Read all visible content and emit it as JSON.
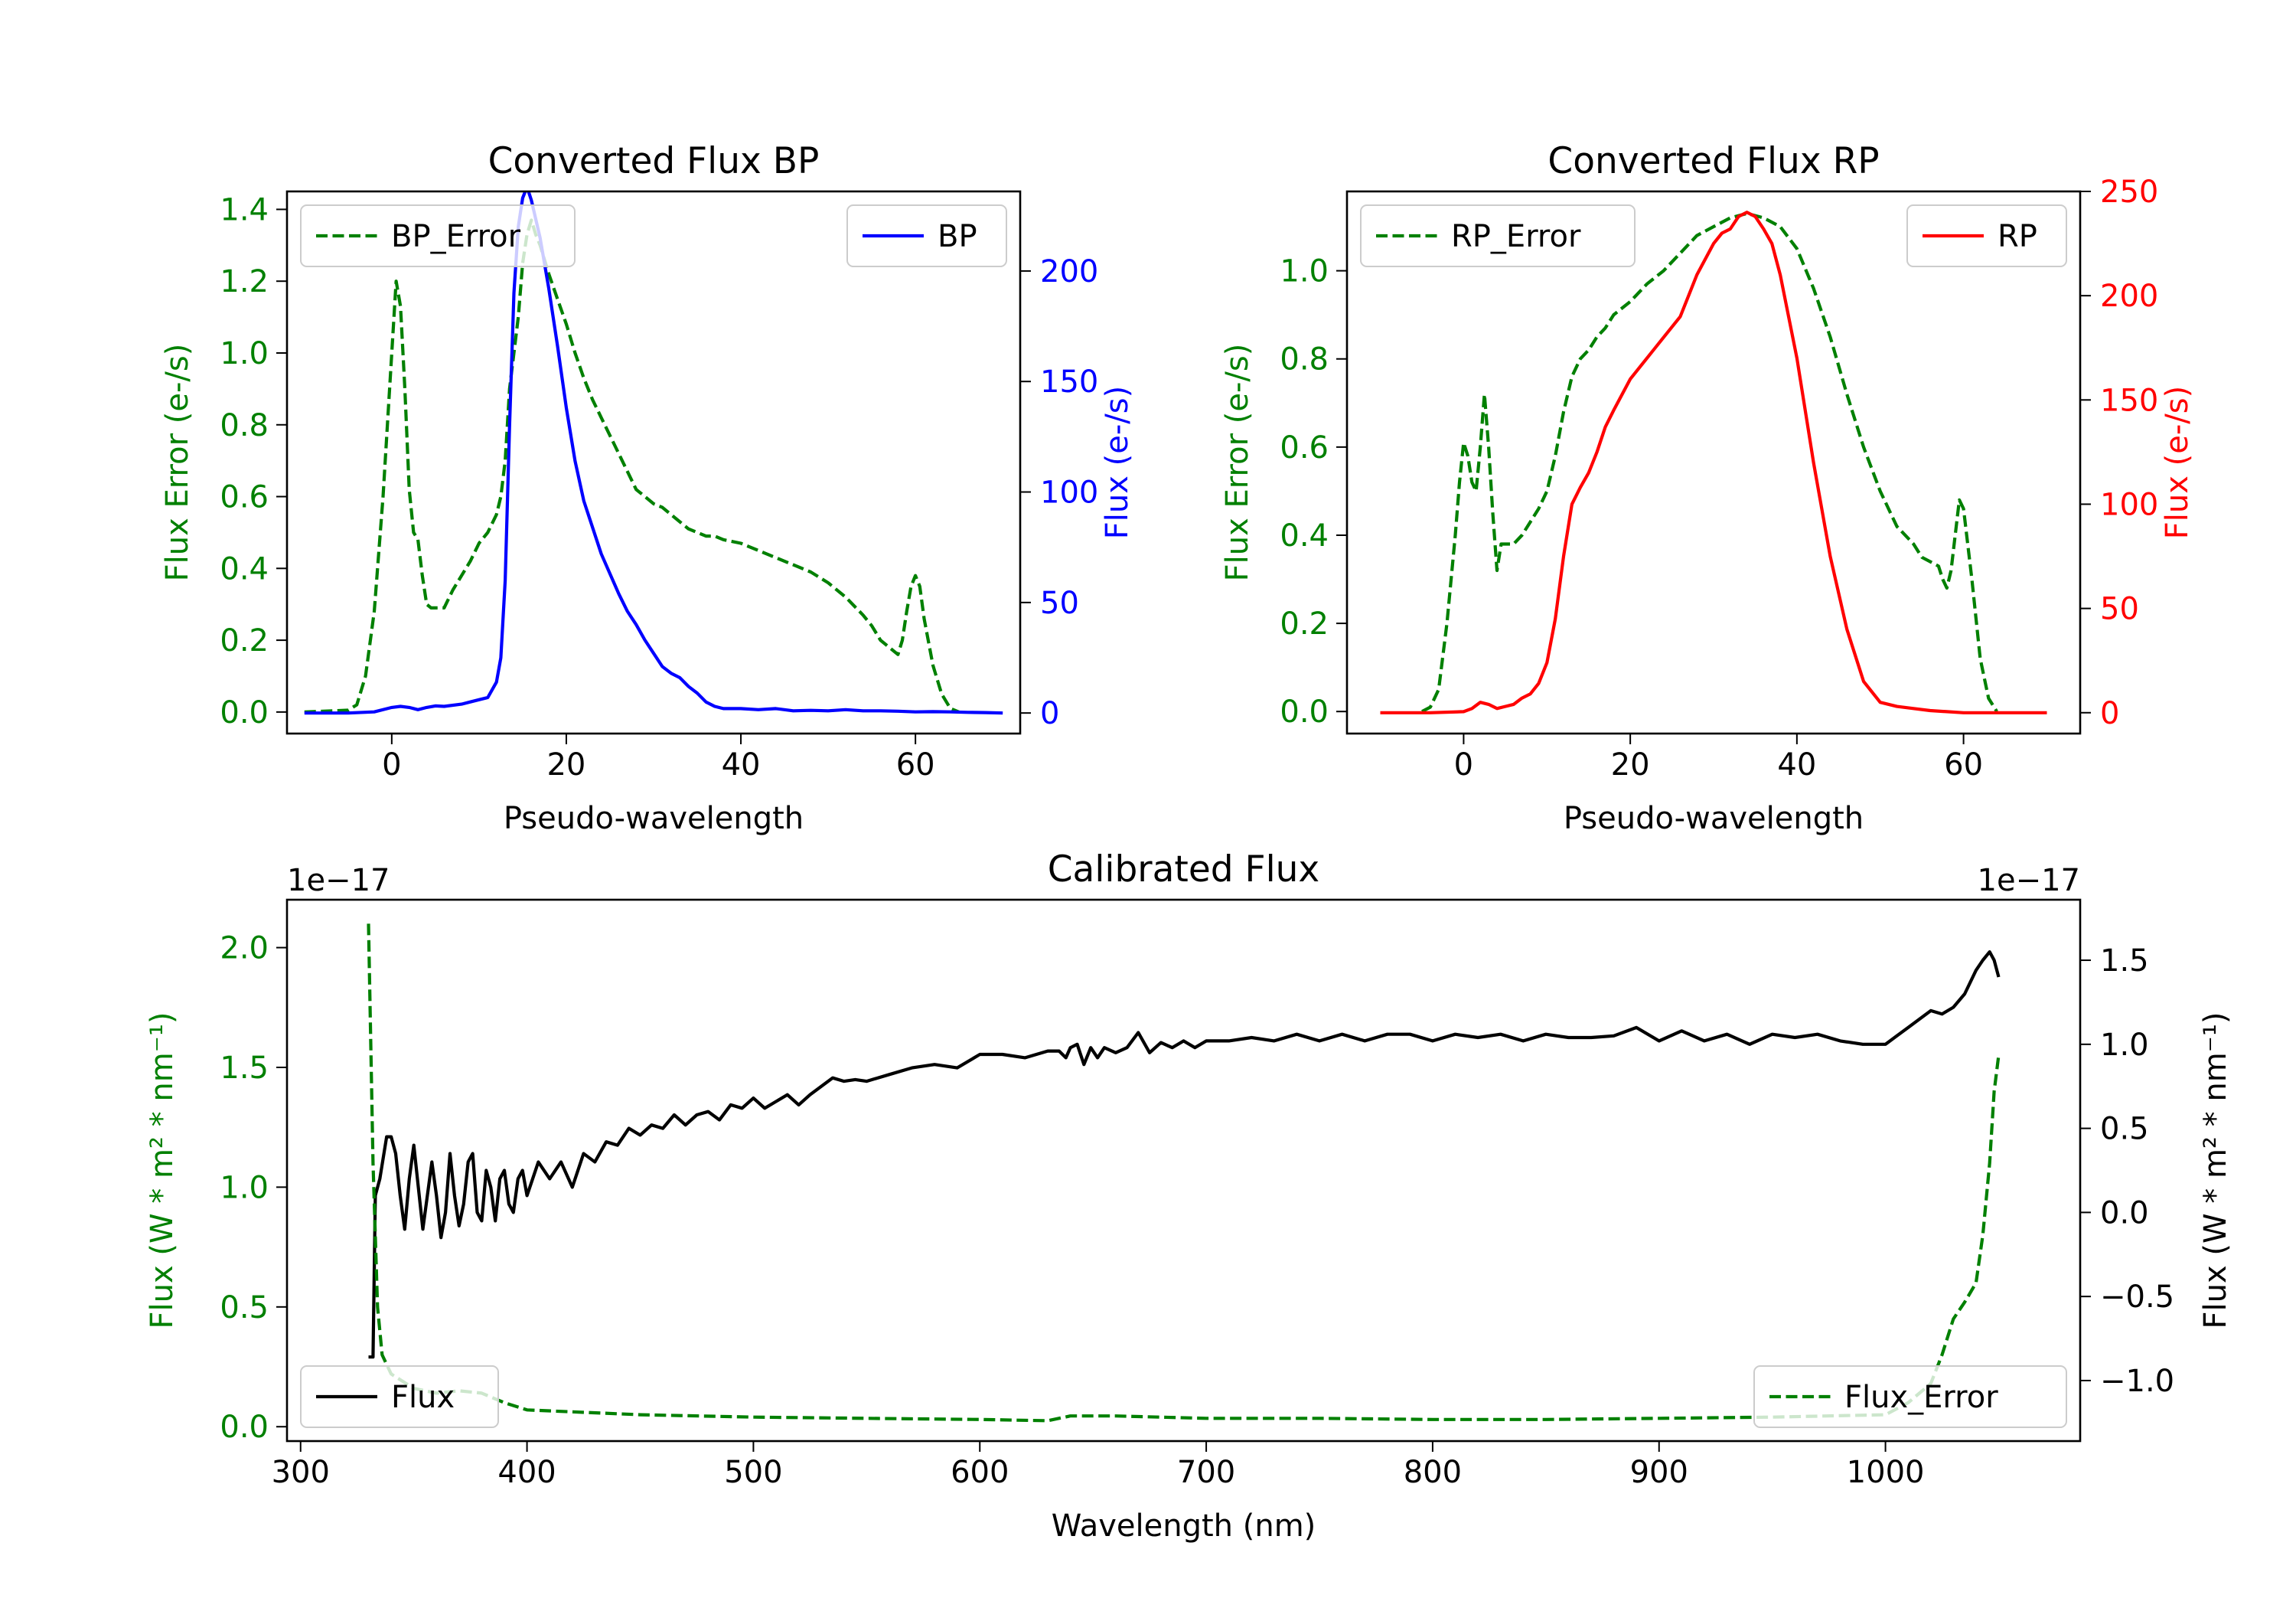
{
  "chart_data": [
    {
      "type": "line",
      "title": "Converted Flux BP",
      "xlabel": "Pseudo-wavelength",
      "ylabel_left": "Flux Error (e-/s)",
      "ylabel_right": "Flux (e-/s)",
      "xlim": [
        -12,
        72
      ],
      "ylim_left": [
        -0.06,
        1.45
      ],
      "ylim_right": [
        -9.3,
        236
      ],
      "xticks": [
        0,
        20,
        40,
        60
      ],
      "xtick_labels": [
        "0",
        "20",
        "40",
        "60"
      ],
      "yticks_left": [
        0,
        0.2,
        0.4,
        0.6,
        0.8,
        1.0,
        1.2,
        1.4
      ],
      "ytick_labels_left": [
        "0.0",
        "0.2",
        "0.4",
        "0.6",
        "0.8",
        "1.0",
        "1.2",
        "1.4"
      ],
      "yticks_right": [
        0,
        50,
        100,
        150,
        200
      ],
      "ytick_labels_right": [
        "0",
        "50",
        "100",
        "150",
        "200"
      ],
      "legend_left": {
        "position": "upper-left",
        "label": "BP_Error"
      },
      "legend_right": {
        "position": "upper-right",
        "label": "BP"
      },
      "series": [
        {
          "name": "BP_Error",
          "axis": "left",
          "color": "#008000",
          "style": "dashed",
          "x": [
            -10,
            -5,
            -4,
            -3,
            -2,
            -1,
            0,
            0.5,
            1,
            1.5,
            2,
            2.5,
            3,
            3.5,
            4,
            4.5,
            5,
            6,
            7,
            8,
            9,
            10,
            11,
            12,
            12.5,
            13,
            13.5,
            14,
            14.5,
            15,
            15.5,
            16,
            16.5,
            17,
            17.5,
            18,
            19,
            20,
            21,
            22,
            23,
            24,
            25,
            26,
            27,
            28,
            29,
            30,
            31,
            32,
            33,
            34,
            35,
            36,
            37,
            38,
            40,
            42,
            44,
            46,
            48,
            50,
            52,
            54,
            55,
            56,
            57,
            58,
            58.5,
            59,
            59.5,
            60,
            60.5,
            61,
            62,
            63,
            64,
            65
          ],
          "y": [
            0,
            0.005,
            0.02,
            0.1,
            0.28,
            0.6,
            1.0,
            1.2,
            1.13,
            0.9,
            0.62,
            0.5,
            0.48,
            0.38,
            0.3,
            0.29,
            0.29,
            0.29,
            0.34,
            0.38,
            0.42,
            0.47,
            0.5,
            0.55,
            0.6,
            0.7,
            0.9,
            1.0,
            1.1,
            1.25,
            1.33,
            1.37,
            1.33,
            1.3,
            1.26,
            1.22,
            1.15,
            1.08,
            1.0,
            0.93,
            0.87,
            0.82,
            0.77,
            0.72,
            0.67,
            0.62,
            0.6,
            0.58,
            0.57,
            0.55,
            0.53,
            0.51,
            0.5,
            0.49,
            0.49,
            0.48,
            0.47,
            0.45,
            0.43,
            0.41,
            0.39,
            0.36,
            0.32,
            0.27,
            0.24,
            0.2,
            0.18,
            0.16,
            0.2,
            0.28,
            0.35,
            0.38,
            0.35,
            0.26,
            0.13,
            0.05,
            0.01,
            0.0
          ]
        },
        {
          "name": "BP",
          "axis": "right",
          "color": "#0000ff",
          "style": "solid",
          "x": [
            -10,
            -5,
            -2,
            0,
            1,
            2,
            3,
            4,
            5,
            6,
            8,
            9,
            10,
            11,
            12,
            12.5,
            13,
            13.5,
            14,
            14.5,
            15,
            15.5,
            16,
            17,
            18,
            19,
            20,
            21,
            22,
            23,
            24,
            25,
            26,
            27,
            28,
            29,
            30,
            31,
            32,
            33,
            34,
            35,
            36,
            37,
            38,
            40,
            42,
            44,
            46,
            48,
            50,
            52,
            54,
            56,
            58,
            60,
            62,
            64,
            66,
            68,
            70
          ],
          "y": [
            0,
            0,
            0.5,
            2.5,
            3,
            2.5,
            1.5,
            2.5,
            3.2,
            3,
            4,
            5,
            6,
            7,
            14,
            25,
            60,
            130,
            190,
            220,
            233,
            238,
            232,
            215,
            192,
            166,
            138,
            114,
            96,
            84,
            72,
            63,
            54,
            46,
            40,
            33,
            27,
            21,
            18,
            16,
            12,
            9,
            5,
            3,
            2,
            2,
            1.5,
            2,
            1,
            1.2,
            1,
            1.5,
            1,
            1,
            0.8,
            0.5,
            0.6,
            0.5,
            0.3,
            0.2,
            0
          ]
        }
      ]
    },
    {
      "type": "line",
      "title": "Converted Flux RP",
      "xlabel": "Pseudo-wavelength",
      "ylabel_left": "Flux Error (e-/s)",
      "ylabel_right": "Flux (e-/s)",
      "xlim": [
        -14,
        74
      ],
      "ylim_left": [
        -0.05,
        1.18
      ],
      "ylim_right": [
        -10,
        250
      ],
      "xticks": [
        0,
        20,
        40,
        60
      ],
      "xtick_labels": [
        "0",
        "20",
        "40",
        "60"
      ],
      "yticks_left": [
        0,
        0.2,
        0.4,
        0.6,
        0.8,
        1.0
      ],
      "ytick_labels_left": [
        "0.0",
        "0.2",
        "0.4",
        "0.6",
        "0.8",
        "1.0"
      ],
      "yticks_right": [
        0,
        50,
        100,
        150,
        200,
        250
      ],
      "ytick_labels_right": [
        "0",
        "50",
        "100",
        "150",
        "200",
        "250"
      ],
      "legend_left": {
        "position": "upper-left",
        "label": "RP_Error"
      },
      "legend_right": {
        "position": "upper-right",
        "label": "RP"
      },
      "series": [
        {
          "name": "RP_Error",
          "axis": "left",
          "color": "#008000",
          "style": "dashed",
          "x": [
            -5,
            -4,
            -3,
            -2,
            -1,
            -0.5,
            0,
            0.5,
            1,
            1.5,
            2,
            2.5,
            3,
            3.5,
            4,
            4.5,
            5,
            6,
            7,
            8,
            9,
            10,
            11,
            12,
            13,
            14,
            15,
            16,
            17,
            18,
            20,
            22,
            24,
            26,
            28,
            30,
            32,
            34,
            36,
            38,
            40,
            42,
            44,
            46,
            48,
            50,
            52,
            54,
            55,
            56,
            57,
            57.5,
            58,
            58.5,
            59,
            59.5,
            60,
            61,
            62,
            63,
            64
          ],
          "y": [
            0,
            0.01,
            0.05,
            0.2,
            0.4,
            0.52,
            0.61,
            0.58,
            0.52,
            0.5,
            0.6,
            0.72,
            0.6,
            0.45,
            0.32,
            0.38,
            0.38,
            0.38,
            0.4,
            0.43,
            0.46,
            0.5,
            0.58,
            0.68,
            0.76,
            0.8,
            0.82,
            0.85,
            0.87,
            0.9,
            0.93,
            0.97,
            1.0,
            1.04,
            1.08,
            1.1,
            1.12,
            1.13,
            1.12,
            1.1,
            1.05,
            0.96,
            0.85,
            0.72,
            0.6,
            0.5,
            0.42,
            0.38,
            0.35,
            0.34,
            0.33,
            0.3,
            0.28,
            0.32,
            0.4,
            0.48,
            0.46,
            0.3,
            0.12,
            0.03,
            0.0
          ]
        },
        {
          "name": "RP",
          "axis": "right",
          "color": "#ff0000",
          "style": "solid",
          "x": [
            -10,
            -4,
            0,
            1,
            2,
            3,
            4,
            5,
            6,
            7,
            8,
            9,
            10,
            11,
            12,
            13,
            14,
            15,
            16,
            17,
            18,
            20,
            22,
            24,
            26,
            28,
            30,
            31,
            32,
            33,
            34,
            35,
            36,
            37,
            38,
            40,
            42,
            44,
            46,
            48,
            50,
            52,
            54,
            56,
            58,
            60,
            62,
            66,
            70
          ],
          "y": [
            0,
            0,
            0.5,
            2,
            5,
            4,
            2,
            3,
            4,
            7,
            9,
            14,
            24,
            45,
            75,
            100,
            108,
            115,
            125,
            137,
            145,
            160,
            170,
            180,
            190,
            210,
            225,
            230,
            232,
            238,
            240,
            238,
            232,
            225,
            210,
            170,
            120,
            75,
            40,
            15,
            5,
            3,
            2,
            1,
            0.5,
            0,
            0,
            0,
            0
          ]
        }
      ]
    },
    {
      "type": "line",
      "title": "Calibrated Flux",
      "xlabel": "Wavelength (nm)",
      "ylabel_left": "Flux (W * m² * nm⁻¹)",
      "ylabel_right": "Flux (W * m² * nm⁻¹)",
      "offset_left": "1e−17",
      "offset_right": "1e−17",
      "xlim": [
        294,
        1086
      ],
      "ylim_left": [
        -0.06,
        2.2
      ],
      "ylim_right": [
        -1.36,
        1.86
      ],
      "xticks": [
        300,
        400,
        500,
        600,
        700,
        800,
        900,
        1000
      ],
      "xtick_labels": [
        "300",
        "400",
        "500",
        "600",
        "700",
        "800",
        "900",
        "1000"
      ],
      "yticks_left": [
        0,
        0.5,
        1.0,
        1.5,
        2.0
      ],
      "ytick_labels_left": [
        "0.0",
        "0.5",
        "1.0",
        "1.5",
        "2.0"
      ],
      "yticks_right": [
        -1.0,
        -0.5,
        0.0,
        0.5,
        1.0,
        1.5
      ],
      "ytick_labels_right": [
        "−1.0",
        "−0.5",
        "0.0",
        "0.5",
        "1.0",
        "1.5"
      ],
      "legend_left": {
        "position": "lower-left",
        "label": "Flux"
      },
      "legend_right": {
        "position": "lower-right",
        "label": "Flux_Error"
      },
      "series": [
        {
          "name": "Flux",
          "axis": "right",
          "color": "#000000",
          "style": "solid",
          "x": [
            330,
            332,
            333,
            335,
            338,
            340,
            342,
            344,
            346,
            348,
            350,
            352,
            354,
            356,
            358,
            360,
            362,
            364,
            366,
            368,
            370,
            372,
            374,
            376,
            378,
            380,
            382,
            384,
            386,
            388,
            390,
            392,
            394,
            396,
            398,
            400,
            405,
            410,
            415,
            420,
            425,
            430,
            435,
            440,
            445,
            450,
            455,
            460,
            465,
            470,
            475,
            480,
            485,
            490,
            495,
            500,
            505,
            510,
            515,
            520,
            525,
            530,
            535,
            540,
            545,
            550,
            560,
            570,
            580,
            590,
            600,
            610,
            620,
            630,
            635,
            638,
            640,
            643,
            646,
            649,
            652,
            655,
            660,
            665,
            670,
            675,
            680,
            685,
            690,
            695,
            700,
            710,
            720,
            730,
            740,
            750,
            760,
            770,
            780,
            790,
            800,
            810,
            820,
            830,
            840,
            850,
            860,
            870,
            880,
            890,
            900,
            910,
            920,
            930,
            940,
            950,
            960,
            970,
            980,
            990,
            1000,
            1005,
            1010,
            1015,
            1020,
            1025,
            1030,
            1035,
            1040,
            1043,
            1046,
            1048,
            1050
          ],
          "y": [
            -0.86,
            -0.86,
            0.1,
            0.2,
            0.45,
            0.45,
            0.35,
            0.1,
            -0.1,
            0.2,
            0.4,
            0.15,
            -0.1,
            0.1,
            0.3,
            0.1,
            -0.15,
            0.0,
            0.35,
            0.1,
            -0.08,
            0.05,
            0.3,
            0.35,
            0.0,
            -0.05,
            0.25,
            0.15,
            -0.05,
            0.2,
            0.25,
            0.05,
            0.0,
            0.2,
            0.25,
            0.1,
            0.3,
            0.2,
            0.3,
            0.15,
            0.35,
            0.3,
            0.42,
            0.4,
            0.5,
            0.46,
            0.52,
            0.5,
            0.58,
            0.52,
            0.58,
            0.6,
            0.55,
            0.64,
            0.62,
            0.68,
            0.62,
            0.66,
            0.7,
            0.64,
            0.7,
            0.75,
            0.8,
            0.78,
            0.79,
            0.78,
            0.82,
            0.86,
            0.88,
            0.86,
            0.94,
            0.94,
            0.92,
            0.96,
            0.96,
            0.92,
            0.98,
            1.0,
            0.88,
            0.98,
            0.92,
            0.98,
            0.95,
            0.98,
            1.07,
            0.95,
            1.01,
            0.98,
            1.02,
            0.98,
            1.02,
            1.02,
            1.04,
            1.02,
            1.06,
            1.02,
            1.06,
            1.02,
            1.06,
            1.06,
            1.02,
            1.06,
            1.04,
            1.06,
            1.02,
            1.06,
            1.04,
            1.04,
            1.05,
            1.1,
            1.02,
            1.08,
            1.02,
            1.06,
            1.0,
            1.06,
            1.04,
            1.06,
            1.02,
            1.0,
            1.0,
            1.05,
            1.1,
            1.15,
            1.2,
            1.18,
            1.22,
            1.3,
            1.44,
            1.5,
            1.55,
            1.5,
            1.4
          ]
        },
        {
          "name": "Flux_Error",
          "axis": "left",
          "color": "#008000",
          "style": "dashed",
          "x": [
            330,
            332,
            334,
            336,
            340,
            350,
            360,
            370,
            380,
            390,
            400,
            450,
            500,
            550,
            600,
            630,
            640,
            660,
            700,
            750,
            800,
            850,
            900,
            950,
            1000,
            1010,
            1020,
            1025,
            1030,
            1035,
            1040,
            1043,
            1046,
            1048,
            1050
          ],
          "y": [
            2.1,
            1.1,
            0.5,
            0.3,
            0.22,
            0.16,
            0.14,
            0.15,
            0.14,
            0.1,
            0.07,
            0.05,
            0.04,
            0.035,
            0.03,
            0.025,
            0.045,
            0.045,
            0.035,
            0.035,
            0.03,
            0.03,
            0.035,
            0.04,
            0.05,
            0.1,
            0.18,
            0.3,
            0.45,
            0.52,
            0.6,
            0.8,
            1.1,
            1.4,
            1.55
          ]
        }
      ]
    }
  ]
}
